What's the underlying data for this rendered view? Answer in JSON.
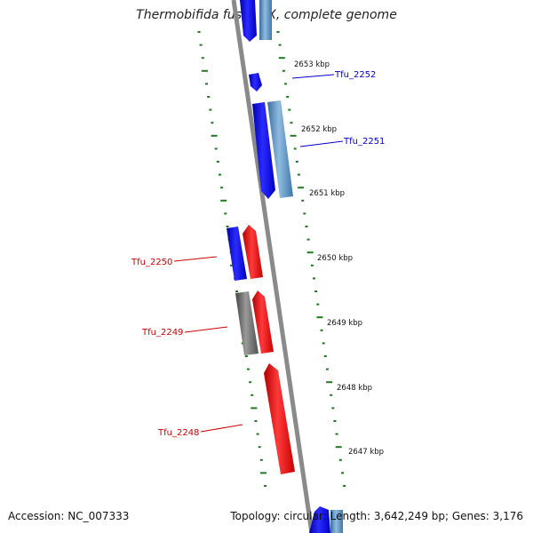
{
  "title": "Thermobifida fusca YX, complete genome",
  "footer": {
    "accession": "Accession: NC_007333",
    "summary": "Topology: circular; Length: 3,642,249 bp; Genes: 3,176"
  },
  "colors": {
    "backbone": "#8a8a8a",
    "forward_blue": "#1414ee",
    "light_blue": "#5d95c5",
    "reverse_red": "#ee1111",
    "gray_feature": "#6e6e6e",
    "tick_green": "#1f7a1f",
    "label_blue": "#0000cc",
    "label_red": "#cc0000"
  },
  "kbp_ticks": [
    "2653 kbp",
    "2652 kbp",
    "2651 kbp",
    "2650 kbp",
    "2649 kbp",
    "2648 kbp",
    "2647 kbp"
  ],
  "genes": [
    {
      "label": "Tfu_2252",
      "side": "right",
      "color": "blue"
    },
    {
      "label": "Tfu_2251",
      "side": "right",
      "color": "blue"
    },
    {
      "label": "Tfu_2250",
      "side": "left",
      "color": "red"
    },
    {
      "label": "Tfu_2249",
      "side": "left",
      "color": "red"
    },
    {
      "label": "Tfu_2248",
      "side": "left",
      "color": "red"
    }
  ]
}
